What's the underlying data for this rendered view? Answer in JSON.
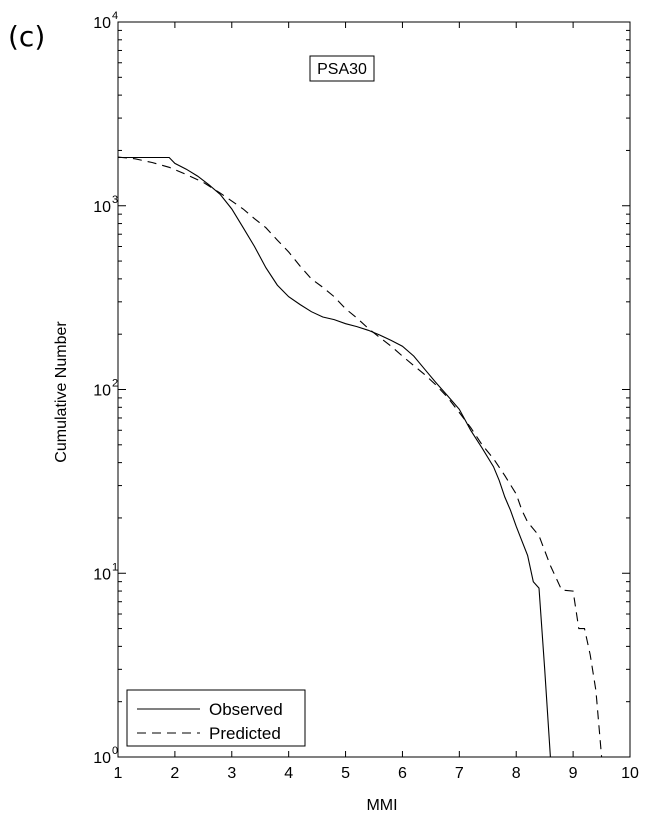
{
  "panel_label": "(c)",
  "chart_data": {
    "type": "line",
    "title": "",
    "annotation": "PSA30",
    "xlabel": "MMI",
    "ylabel": "Cumulative Number",
    "xlim": [
      1,
      10
    ],
    "ylim": [
      1,
      10000
    ],
    "yscale": "log",
    "grid": false,
    "legend_position": "bottom-left",
    "x_ticks": [
      "1",
      "2",
      "3",
      "4",
      "5",
      "6",
      "7",
      "8",
      "9",
      "10"
    ],
    "y_ticks": [
      {
        "base": "10",
        "exp": "0",
        "value": 1
      },
      {
        "base": "10",
        "exp": "1",
        "value": 10
      },
      {
        "base": "10",
        "exp": "2",
        "value": 100
      },
      {
        "base": "10",
        "exp": "3",
        "value": 1000
      },
      {
        "base": "10",
        "exp": "4",
        "value": 10000
      }
    ],
    "series": [
      {
        "name": "Observed",
        "style": "solid",
        "color": "#000000",
        "points": [
          [
            1.0,
            1830
          ],
          [
            1.3,
            1830
          ],
          [
            1.6,
            1830
          ],
          [
            1.9,
            1830
          ],
          [
            2.0,
            1700
          ],
          [
            2.2,
            1580
          ],
          [
            2.4,
            1450
          ],
          [
            2.6,
            1300
          ],
          [
            2.8,
            1150
          ],
          [
            3.0,
            960
          ],
          [
            3.2,
            760
          ],
          [
            3.4,
            600
          ],
          [
            3.6,
            460
          ],
          [
            3.8,
            370
          ],
          [
            4.0,
            320
          ],
          [
            4.2,
            290
          ],
          [
            4.4,
            265
          ],
          [
            4.6,
            248
          ],
          [
            4.8,
            240
          ],
          [
            5.0,
            228
          ],
          [
            5.2,
            220
          ],
          [
            5.4,
            210
          ],
          [
            5.6,
            198
          ],
          [
            5.8,
            185
          ],
          [
            6.0,
            172
          ],
          [
            6.2,
            152
          ],
          [
            6.4,
            128
          ],
          [
            6.6,
            108
          ],
          [
            6.8,
            92
          ],
          [
            7.0,
            78
          ],
          [
            7.2,
            60
          ],
          [
            7.4,
            48
          ],
          [
            7.6,
            38
          ],
          [
            7.7,
            32
          ],
          [
            7.8,
            26
          ],
          [
            7.9,
            22
          ],
          [
            8.0,
            18
          ],
          [
            8.1,
            15
          ],
          [
            8.2,
            12.5
          ],
          [
            8.3,
            9
          ],
          [
            8.4,
            8.3
          ],
          [
            8.5,
            3
          ],
          [
            8.6,
            1.0
          ]
        ]
      },
      {
        "name": "Predicted",
        "style": "dashed",
        "color": "#000000",
        "points": [
          [
            1.0,
            1840
          ],
          [
            1.3,
            1800
          ],
          [
            1.6,
            1720
          ],
          [
            1.9,
            1620
          ],
          [
            2.2,
            1480
          ],
          [
            2.5,
            1340
          ],
          [
            2.8,
            1170
          ],
          [
            3.0,
            1060
          ],
          [
            3.2,
            960
          ],
          [
            3.4,
            850
          ],
          [
            3.6,
            760
          ],
          [
            3.8,
            650
          ],
          [
            4.0,
            560
          ],
          [
            4.2,
            470
          ],
          [
            4.4,
            400
          ],
          [
            4.6,
            360
          ],
          [
            4.8,
            320
          ],
          [
            5.0,
            275
          ],
          [
            5.2,
            245
          ],
          [
            5.4,
            215
          ],
          [
            5.6,
            192
          ],
          [
            5.8,
            172
          ],
          [
            6.0,
            152
          ],
          [
            6.2,
            135
          ],
          [
            6.4,
            120
          ],
          [
            6.6,
            105
          ],
          [
            6.8,
            90
          ],
          [
            7.0,
            75
          ],
          [
            7.2,
            62
          ],
          [
            7.4,
            50
          ],
          [
            7.6,
            42
          ],
          [
            7.8,
            34
          ],
          [
            8.0,
            27
          ],
          [
            8.1,
            22
          ],
          [
            8.2,
            19
          ],
          [
            8.4,
            16
          ],
          [
            8.6,
            11
          ],
          [
            8.8,
            8.1
          ],
          [
            9.0,
            8.0
          ],
          [
            9.1,
            5.0
          ],
          [
            9.2,
            5.0
          ],
          [
            9.3,
            3.6
          ],
          [
            9.4,
            2.3
          ],
          [
            9.5,
            1.0
          ]
        ]
      }
    ]
  }
}
